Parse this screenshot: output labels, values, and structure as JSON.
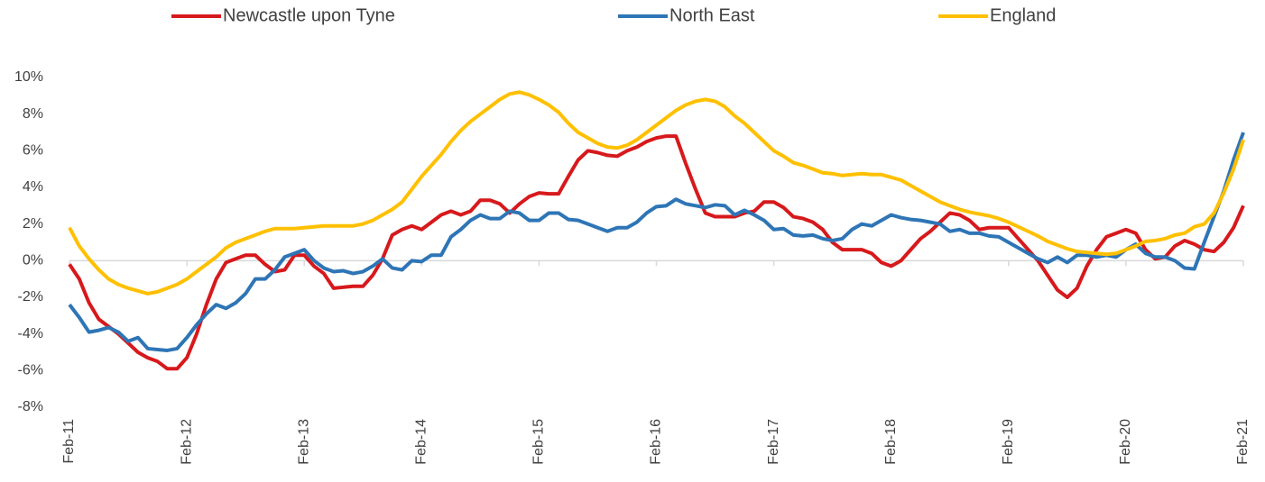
{
  "chart_data": {
    "type": "line",
    "categories": [
      "Feb-11",
      null,
      null,
      null,
      null,
      null,
      null,
      null,
      null,
      null,
      null,
      null,
      "Feb-12",
      null,
      null,
      null,
      null,
      null,
      null,
      null,
      null,
      null,
      null,
      null,
      "Feb-13",
      null,
      null,
      null,
      null,
      null,
      null,
      null,
      null,
      null,
      null,
      null,
      "Feb-14",
      null,
      null,
      null,
      null,
      null,
      null,
      null,
      null,
      null,
      null,
      null,
      "Feb-15",
      null,
      null,
      null,
      null,
      null,
      null,
      null,
      null,
      null,
      null,
      null,
      "Feb-16",
      null,
      null,
      null,
      null,
      null,
      null,
      null,
      null,
      null,
      null,
      null,
      "Feb-17",
      null,
      null,
      null,
      null,
      null,
      null,
      null,
      null,
      null,
      null,
      null,
      "Feb-18",
      null,
      null,
      null,
      null,
      null,
      null,
      null,
      null,
      null,
      null,
      null,
      "Feb-19",
      null,
      null,
      null,
      null,
      null,
      null,
      null,
      null,
      null,
      null,
      null,
      "Feb-20",
      null,
      null,
      null,
      null,
      null,
      null,
      null,
      null,
      null,
      null,
      null,
      "Feb-21"
    ],
    "series": [
      {
        "name": "Newcastle upon Tyne",
        "color": "#d7191c",
        "values": [
          -0.2,
          -1.0,
          -2.3,
          -3.2,
          -3.6,
          -4.0,
          -4.5,
          -5.0,
          -5.3,
          -5.5,
          -5.9,
          -5.9,
          -5.3,
          -4.0,
          -2.4,
          -1.0,
          -0.1,
          0.1,
          0.3,
          0.3,
          -0.2,
          -0.6,
          -0.5,
          0.3,
          0.3,
          -0.3,
          -0.7,
          -1.5,
          -1.45,
          -1.4,
          -1.4,
          -0.8,
          0.1,
          1.4,
          1.7,
          1.9,
          1.7,
          2.1,
          2.5,
          2.7,
          2.5,
          2.7,
          3.3,
          3.3,
          3.1,
          2.6,
          3.1,
          3.5,
          3.7,
          3.65,
          3.65,
          4.6,
          5.5,
          6.0,
          5.9,
          5.75,
          5.7,
          6.0,
          6.2,
          6.5,
          6.7,
          6.8,
          6.8,
          5.3,
          3.9,
          2.6,
          2.4,
          2.4,
          2.4,
          2.6,
          2.7,
          3.2,
          3.2,
          2.9,
          2.4,
          2.3,
          2.1,
          1.7,
          1.0,
          0.6,
          0.6,
          0.6,
          0.4,
          -0.1,
          -0.3,
          0.0,
          0.6,
          1.2,
          1.6,
          2.1,
          2.6,
          2.5,
          2.2,
          1.7,
          1.8,
          1.8,
          1.8,
          1.2,
          0.6,
          0.0,
          -0.8,
          -1.6,
          -2.0,
          -1.5,
          -0.3,
          0.6,
          1.3,
          1.5,
          1.7,
          1.5,
          0.6,
          0.1,
          0.2,
          0.8,
          1.1,
          0.9,
          0.6,
          0.5,
          1.0,
          1.8,
          3.0
        ]
      },
      {
        "name": "North East",
        "color": "#2e75b6",
        "values": [
          -2.4,
          -3.1,
          -3.9,
          -3.8,
          -3.65,
          -3.9,
          -4.4,
          -4.2,
          -4.8,
          -4.85,
          -4.9,
          -4.8,
          -4.2,
          -3.5,
          -2.9,
          -2.4,
          -2.6,
          -2.3,
          -1.8,
          -1.0,
          -1.0,
          -0.5,
          0.2,
          0.4,
          0.6,
          0.0,
          -0.4,
          -0.6,
          -0.55,
          -0.7,
          -0.6,
          -0.3,
          0.1,
          -0.4,
          -0.5,
          0.0,
          -0.05,
          0.3,
          0.3,
          1.3,
          1.7,
          2.2,
          2.5,
          2.3,
          2.3,
          2.7,
          2.6,
          2.2,
          2.2,
          2.6,
          2.6,
          2.25,
          2.2,
          2.0,
          1.8,
          1.6,
          1.8,
          1.8,
          2.1,
          2.6,
          2.95,
          3.0,
          3.35,
          3.1,
          3.0,
          2.9,
          3.05,
          3.0,
          2.5,
          2.75,
          2.5,
          2.2,
          1.7,
          1.75,
          1.4,
          1.35,
          1.4,
          1.2,
          1.1,
          1.2,
          1.7,
          2.0,
          1.9,
          2.2,
          2.5,
          2.35,
          2.25,
          2.2,
          2.1,
          2.0,
          1.6,
          1.7,
          1.5,
          1.5,
          1.35,
          1.3,
          1.0,
          0.7,
          0.4,
          0.1,
          -0.1,
          0.2,
          -0.1,
          0.3,
          0.3,
          0.2,
          0.3,
          0.2,
          0.6,
          0.9,
          0.4,
          0.2,
          0.2,
          0.0,
          -0.4,
          -0.45,
          1.0,
          2.4,
          3.8,
          5.5,
          7.0
        ]
      },
      {
        "name": "England",
        "color": "#ffc000",
        "values": [
          1.8,
          0.8,
          0.1,
          -0.5,
          -1.0,
          -1.3,
          -1.5,
          -1.65,
          -1.8,
          -1.7,
          -1.5,
          -1.3,
          -1.0,
          -0.6,
          -0.2,
          0.2,
          0.7,
          1.0,
          1.2,
          1.4,
          1.6,
          1.75,
          1.75,
          1.75,
          1.8,
          1.85,
          1.9,
          1.9,
          1.9,
          1.9,
          2.0,
          2.2,
          2.5,
          2.8,
          3.2,
          3.9,
          4.6,
          5.2,
          5.8,
          6.5,
          7.1,
          7.6,
          8.0,
          8.4,
          8.8,
          9.1,
          9.2,
          9.05,
          8.8,
          8.5,
          8.1,
          7.5,
          7.0,
          6.7,
          6.4,
          6.2,
          6.15,
          6.3,
          6.6,
          7.0,
          7.4,
          7.8,
          8.2,
          8.5,
          8.7,
          8.8,
          8.7,
          8.4,
          7.9,
          7.5,
          7.0,
          6.5,
          6.0,
          5.7,
          5.35,
          5.2,
          5.0,
          4.8,
          4.75,
          4.65,
          4.7,
          4.75,
          4.7,
          4.7,
          4.55,
          4.4,
          4.1,
          3.8,
          3.5,
          3.2,
          3.0,
          2.8,
          2.65,
          2.55,
          2.45,
          2.3,
          2.1,
          1.85,
          1.6,
          1.35,
          1.05,
          0.85,
          0.65,
          0.5,
          0.45,
          0.4,
          0.35,
          0.4,
          0.6,
          0.8,
          1.05,
          1.1,
          1.2,
          1.4,
          1.5,
          1.85,
          2.0,
          2.6,
          3.7,
          5.0,
          6.6
        ]
      }
    ],
    "ylim": [
      -8,
      10
    ],
    "yticks": [
      {
        "value": -8,
        "label": "-8%"
      },
      {
        "value": -6,
        "label": "-6%"
      },
      {
        "value": -4,
        "label": "-4%"
      },
      {
        "value": -2,
        "label": "-2%"
      },
      {
        "value": 0,
        "label": "0%"
      },
      {
        "value": 2,
        "label": "2%"
      },
      {
        "value": 4,
        "label": "4%"
      },
      {
        "value": 6,
        "label": "6%"
      },
      {
        "value": 8,
        "label": "8%"
      },
      {
        "value": 10,
        "label": "10%"
      }
    ],
    "legend": "top"
  }
}
